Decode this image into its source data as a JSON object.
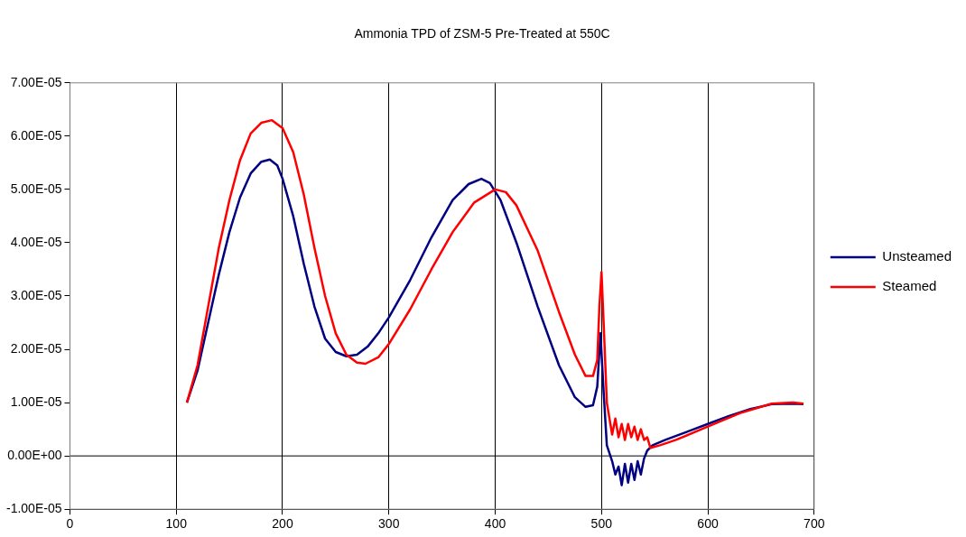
{
  "chart_data": {
    "type": "line",
    "title": "Ammonia TPD of ZSM-5 Pre-Treated at 550C",
    "xlim": [
      0,
      700
    ],
    "xticks": [
      0,
      100,
      200,
      300,
      400,
      500,
      600,
      700
    ],
    "ylim": [
      -1e-05,
      7e-05
    ],
    "yticks": [
      {
        "value": -1e-05,
        "label": "-1.00E-05"
      },
      {
        "value": 0,
        "label": "0.00E+00"
      },
      {
        "value": 1e-05,
        "label": "1.00E-05"
      },
      {
        "value": 2e-05,
        "label": "2.00E-05"
      },
      {
        "value": 3e-05,
        "label": "3.00E-05"
      },
      {
        "value": 4e-05,
        "label": "4.00E-05"
      },
      {
        "value": 5e-05,
        "label": "5.00E-05"
      },
      {
        "value": 6e-05,
        "label": "6.00E-05"
      },
      {
        "value": 7e-05,
        "label": "7.00E-05"
      }
    ],
    "grid": "x",
    "legend": "right",
    "marker": "none",
    "line_style": "solid",
    "ref_lines": [
      {
        "axis": "y",
        "value": 0,
        "color": "#000000"
      }
    ],
    "series": [
      {
        "name": "Unsteamed",
        "color": "#000080",
        "x": [
          110,
          120,
          130,
          140,
          150,
          160,
          170,
          180,
          188,
          195,
          200,
          210,
          220,
          230,
          240,
          250,
          260,
          270,
          280,
          290,
          300,
          320,
          340,
          360,
          375,
          387,
          395,
          405,
          420,
          440,
          460,
          475,
          485,
          492,
          496,
          499,
          502,
          505,
          510,
          513,
          516,
          519,
          522,
          525,
          528,
          531,
          534,
          537,
          540,
          543,
          548,
          560,
          580,
          600,
          620,
          640,
          660,
          680,
          690
        ],
        "values": [
          1e-05,
          1.6e-05,
          2.5e-05,
          3.4e-05,
          4.2e-05,
          4.85e-05,
          5.3e-05,
          5.52e-05,
          5.56e-05,
          5.45e-05,
          5.2e-05,
          4.5e-05,
          3.6e-05,
          2.8e-05,
          2.2e-05,
          1.95e-05,
          1.87e-05,
          1.9e-05,
          2.05e-05,
          2.3e-05,
          2.6e-05,
          3.3e-05,
          4.1e-05,
          4.8e-05,
          5.1e-05,
          5.2e-05,
          5.12e-05,
          4.8e-05,
          4e-05,
          2.8e-05,
          1.7e-05,
          1.1e-05,
          9.2e-06,
          9.5e-06,
          1.3e-05,
          2.3e-05,
          1.2e-05,
          2e-06,
          -1e-06,
          -3.5e-06,
          -2e-06,
          -5.5e-06,
          -1.5e-06,
          -5e-06,
          -1.5e-06,
          -4.5e-06,
          -1e-06,
          -3.5e-06,
          -5e-07,
          1e-06,
          2e-06,
          3e-06,
          4.5e-06,
          6e-06,
          7.5e-06,
          8.8e-06,
          9.7e-06,
          9.8e-06,
          9.7e-06
        ]
      },
      {
        "name": "Steamed",
        "color": "#ff0000",
        "x": [
          110,
          120,
          130,
          140,
          150,
          160,
          170,
          180,
          190,
          200,
          210,
          220,
          230,
          240,
          250,
          260,
          270,
          278,
          290,
          300,
          320,
          340,
          360,
          380,
          400,
          410,
          420,
          440,
          460,
          475,
          485,
          492,
          496,
          498,
          500,
          502,
          505,
          510,
          513,
          516,
          519,
          522,
          525,
          528,
          531,
          534,
          537,
          540,
          543,
          546,
          555,
          570,
          600,
          630,
          660,
          680,
          690
        ],
        "values": [
          1e-05,
          1.7e-05,
          2.8e-05,
          3.9e-05,
          4.8e-05,
          5.55e-05,
          6.05e-05,
          6.25e-05,
          6.3e-05,
          6.15e-05,
          5.7e-05,
          4.9e-05,
          3.9e-05,
          3e-05,
          2.3e-05,
          1.9e-05,
          1.75e-05,
          1.73e-05,
          1.85e-05,
          2.1e-05,
          2.75e-05,
          3.5e-05,
          4.2e-05,
          4.75e-05,
          5e-05,
          4.95e-05,
          4.7e-05,
          3.85e-05,
          2.7e-05,
          1.9e-05,
          1.5e-05,
          1.5e-05,
          1.8e-05,
          2.8e-05,
          3.45e-05,
          2.5e-05,
          1e-05,
          4e-06,
          7e-06,
          3.5e-06,
          6e-06,
          3e-06,
          6e-06,
          3.5e-06,
          5.5e-06,
          3e-06,
          5e-06,
          3e-06,
          3.5e-06,
          1.5e-06,
          2e-06,
          3e-06,
          5.5e-06,
          8e-06,
          9.8e-06,
          1e-05,
          9.8e-06
        ]
      }
    ]
  }
}
